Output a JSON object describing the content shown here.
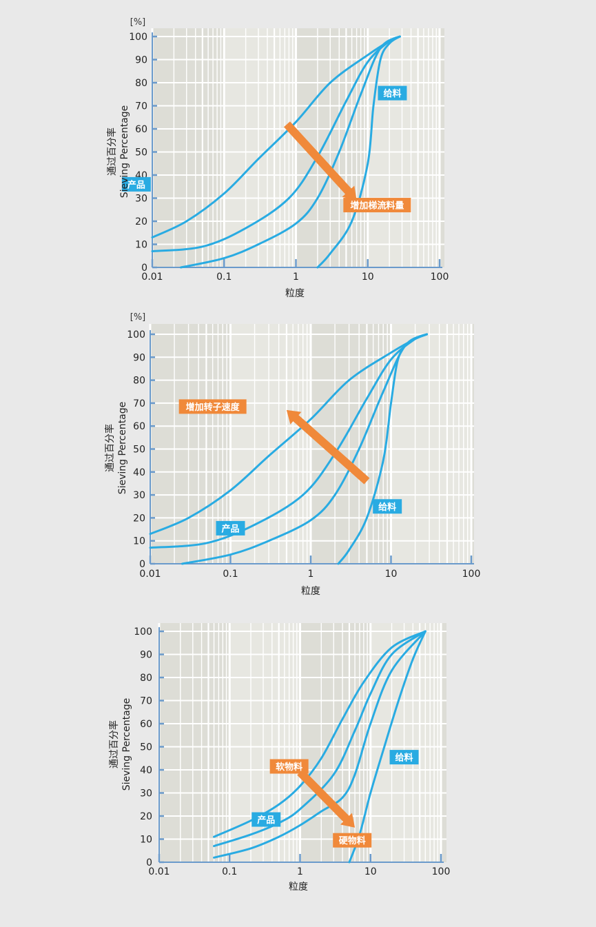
{
  "colors": {
    "page_bg": "#e9e9e9",
    "plot_bg": "#ddddd6",
    "grid": "#ffffff",
    "axis": "#6a9acb",
    "curve": "#29abe2",
    "label_blue": "#29abe2",
    "label_orange": "#f0893a"
  },
  "chart_data": [
    {
      "type": "line",
      "x_scale": "log",
      "xlim": [
        0.01,
        100
      ],
      "ylim": [
        0,
        100
      ],
      "xticks": [
        "0.01",
        "0.1",
        "1",
        "10",
        "100"
      ],
      "yticks": [
        "0",
        "10",
        "20",
        "30",
        "40",
        "50",
        "60",
        "70",
        "80",
        "90",
        "100"
      ],
      "xlabel": "粒度",
      "ylabel_cn": "通过百分率",
      "ylabel_en": "Sieving Percentage",
      "y_unit": "[%]",
      "grid": true,
      "series": [
        {
          "x": [
            0.01,
            0.03,
            0.1,
            0.3,
            1,
            3,
            10,
            20,
            28
          ],
          "y": [
            13,
            20,
            32,
            47,
            63,
            80,
            92,
            98,
            100
          ]
        },
        {
          "x": [
            0.01,
            0.05,
            0.2,
            0.8,
            2,
            5,
            10,
            20,
            28
          ],
          "y": [
            7,
            9,
            17,
            30,
            48,
            72,
            89,
            98,
            100
          ]
        },
        {
          "x": [
            0.025,
            0.1,
            0.3,
            1,
            2,
            4,
            8,
            15,
            28
          ],
          "y": [
            0,
            4,
            10,
            19,
            30,
            50,
            75,
            95,
            100
          ]
        },
        {
          "x": [
            2,
            3,
            6,
            10,
            12,
            15,
            20,
            28
          ],
          "y": [
            0,
            6,
            20,
            45,
            70,
            90,
            97,
            100
          ]
        }
      ],
      "annotations": [
        {
          "text": "产品",
          "kind": "blue",
          "x": 0.006,
          "y": 36
        },
        {
          "text": "给料",
          "kind": "blue",
          "x": 22,
          "y": 75.5
        },
        {
          "text": "增加梯流料量",
          "kind": "orange",
          "x": 13.5,
          "y": 27
        }
      ],
      "arrow": {
        "from": [
          0.75,
          62
        ],
        "to": [
          7,
          29
        ]
      }
    },
    {
      "type": "line",
      "x_scale": "log",
      "xlim": [
        0.01,
        100
      ],
      "ylim": [
        0,
        100
      ],
      "xticks": [
        "0.01",
        "0.1",
        "1",
        "10",
        "100"
      ],
      "yticks": [
        "0",
        "10",
        "20",
        "30",
        "40",
        "50",
        "60",
        "70",
        "80",
        "90",
        "100"
      ],
      "xlabel": "粒度",
      "ylabel_cn": "通过百分率",
      "ylabel_en": "Sieving Percentage",
      "y_unit": "[%]",
      "grid": true,
      "series": [
        {
          "x": [
            0.01,
            0.03,
            0.1,
            0.3,
            1,
            3,
            10,
            20,
            28
          ],
          "y": [
            13,
            20,
            32,
            47,
            63,
            80,
            92,
            98,
            100
          ]
        },
        {
          "x": [
            0.01,
            0.05,
            0.2,
            0.8,
            2,
            5,
            10,
            20,
            28
          ],
          "y": [
            7,
            9,
            17,
            30,
            48,
            72,
            89,
            98,
            100
          ]
        },
        {
          "x": [
            0.025,
            0.1,
            0.3,
            1,
            2,
            4,
            8,
            15,
            28
          ],
          "y": [
            0,
            4,
            10,
            19,
            30,
            50,
            75,
            95,
            100
          ]
        },
        {
          "x": [
            2.2,
            3,
            5,
            8,
            10,
            12,
            15,
            20,
            28
          ],
          "y": [
            0,
            6,
            20,
            45,
            70,
            88,
            95,
            98,
            100
          ]
        }
      ],
      "annotations": [
        {
          "text": "增加转子速度",
          "kind": "orange",
          "x": 0.06,
          "y": 68.5
        },
        {
          "text": "产品",
          "kind": "blue",
          "x": 0.1,
          "y": 15.5
        },
        {
          "text": "给料",
          "kind": "blue",
          "x": 9,
          "y": 25
        }
      ],
      "arrow": {
        "from": [
          5,
          36
        ],
        "to": [
          0.5,
          67
        ]
      }
    },
    {
      "type": "line",
      "x_scale": "log",
      "xlim": [
        0.01,
        100
      ],
      "ylim": [
        0,
        100
      ],
      "xticks": [
        "0.01",
        "0.1",
        "1",
        "10",
        "100"
      ],
      "yticks": [
        "0",
        "10",
        "20",
        "30",
        "40",
        "50",
        "60",
        "70",
        "80",
        "90",
        "100"
      ],
      "xlabel": "粒度",
      "ylabel_cn": "通过百分率",
      "ylabel_en": "Sieving Percentage",
      "grid": true,
      "series": [
        {
          "x": [
            0.06,
            0.2,
            0.5,
            1,
            2,
            4,
            8,
            20,
            60
          ],
          "y": [
            11,
            18,
            25,
            33,
            45,
            62,
            78,
            93,
            100
          ]
        },
        {
          "x": [
            0.06,
            0.2,
            0.5,
            1,
            3,
            6,
            10,
            20,
            60
          ],
          "y": [
            7,
            12,
            17,
            23,
            38,
            57,
            73,
            90,
            100
          ]
        },
        {
          "x": [
            0.06,
            0.2,
            0.5,
            1,
            2,
            4,
            6,
            10,
            20,
            60
          ],
          "y": [
            2,
            6,
            11,
            16,
            22,
            28,
            38,
            60,
            83,
            100
          ]
        },
        {
          "x": [
            5,
            7,
            10,
            15,
            25,
            40,
            60
          ],
          "y": [
            0,
            12,
            30,
            48,
            70,
            88,
            100
          ]
        }
      ],
      "annotations": [
        {
          "text": "软物料",
          "kind": "orange",
          "x": 0.7,
          "y": 41.5
        },
        {
          "text": "产品",
          "kind": "blue",
          "x": 0.33,
          "y": 18.5
        },
        {
          "text": "给料",
          "kind": "blue",
          "x": 30,
          "y": 45.5
        },
        {
          "text": "硬物料",
          "kind": "orange",
          "x": 5.5,
          "y": 9.5
        }
      ],
      "arrow": {
        "from": [
          1,
          39
        ],
        "to": [
          6,
          15
        ]
      }
    }
  ]
}
